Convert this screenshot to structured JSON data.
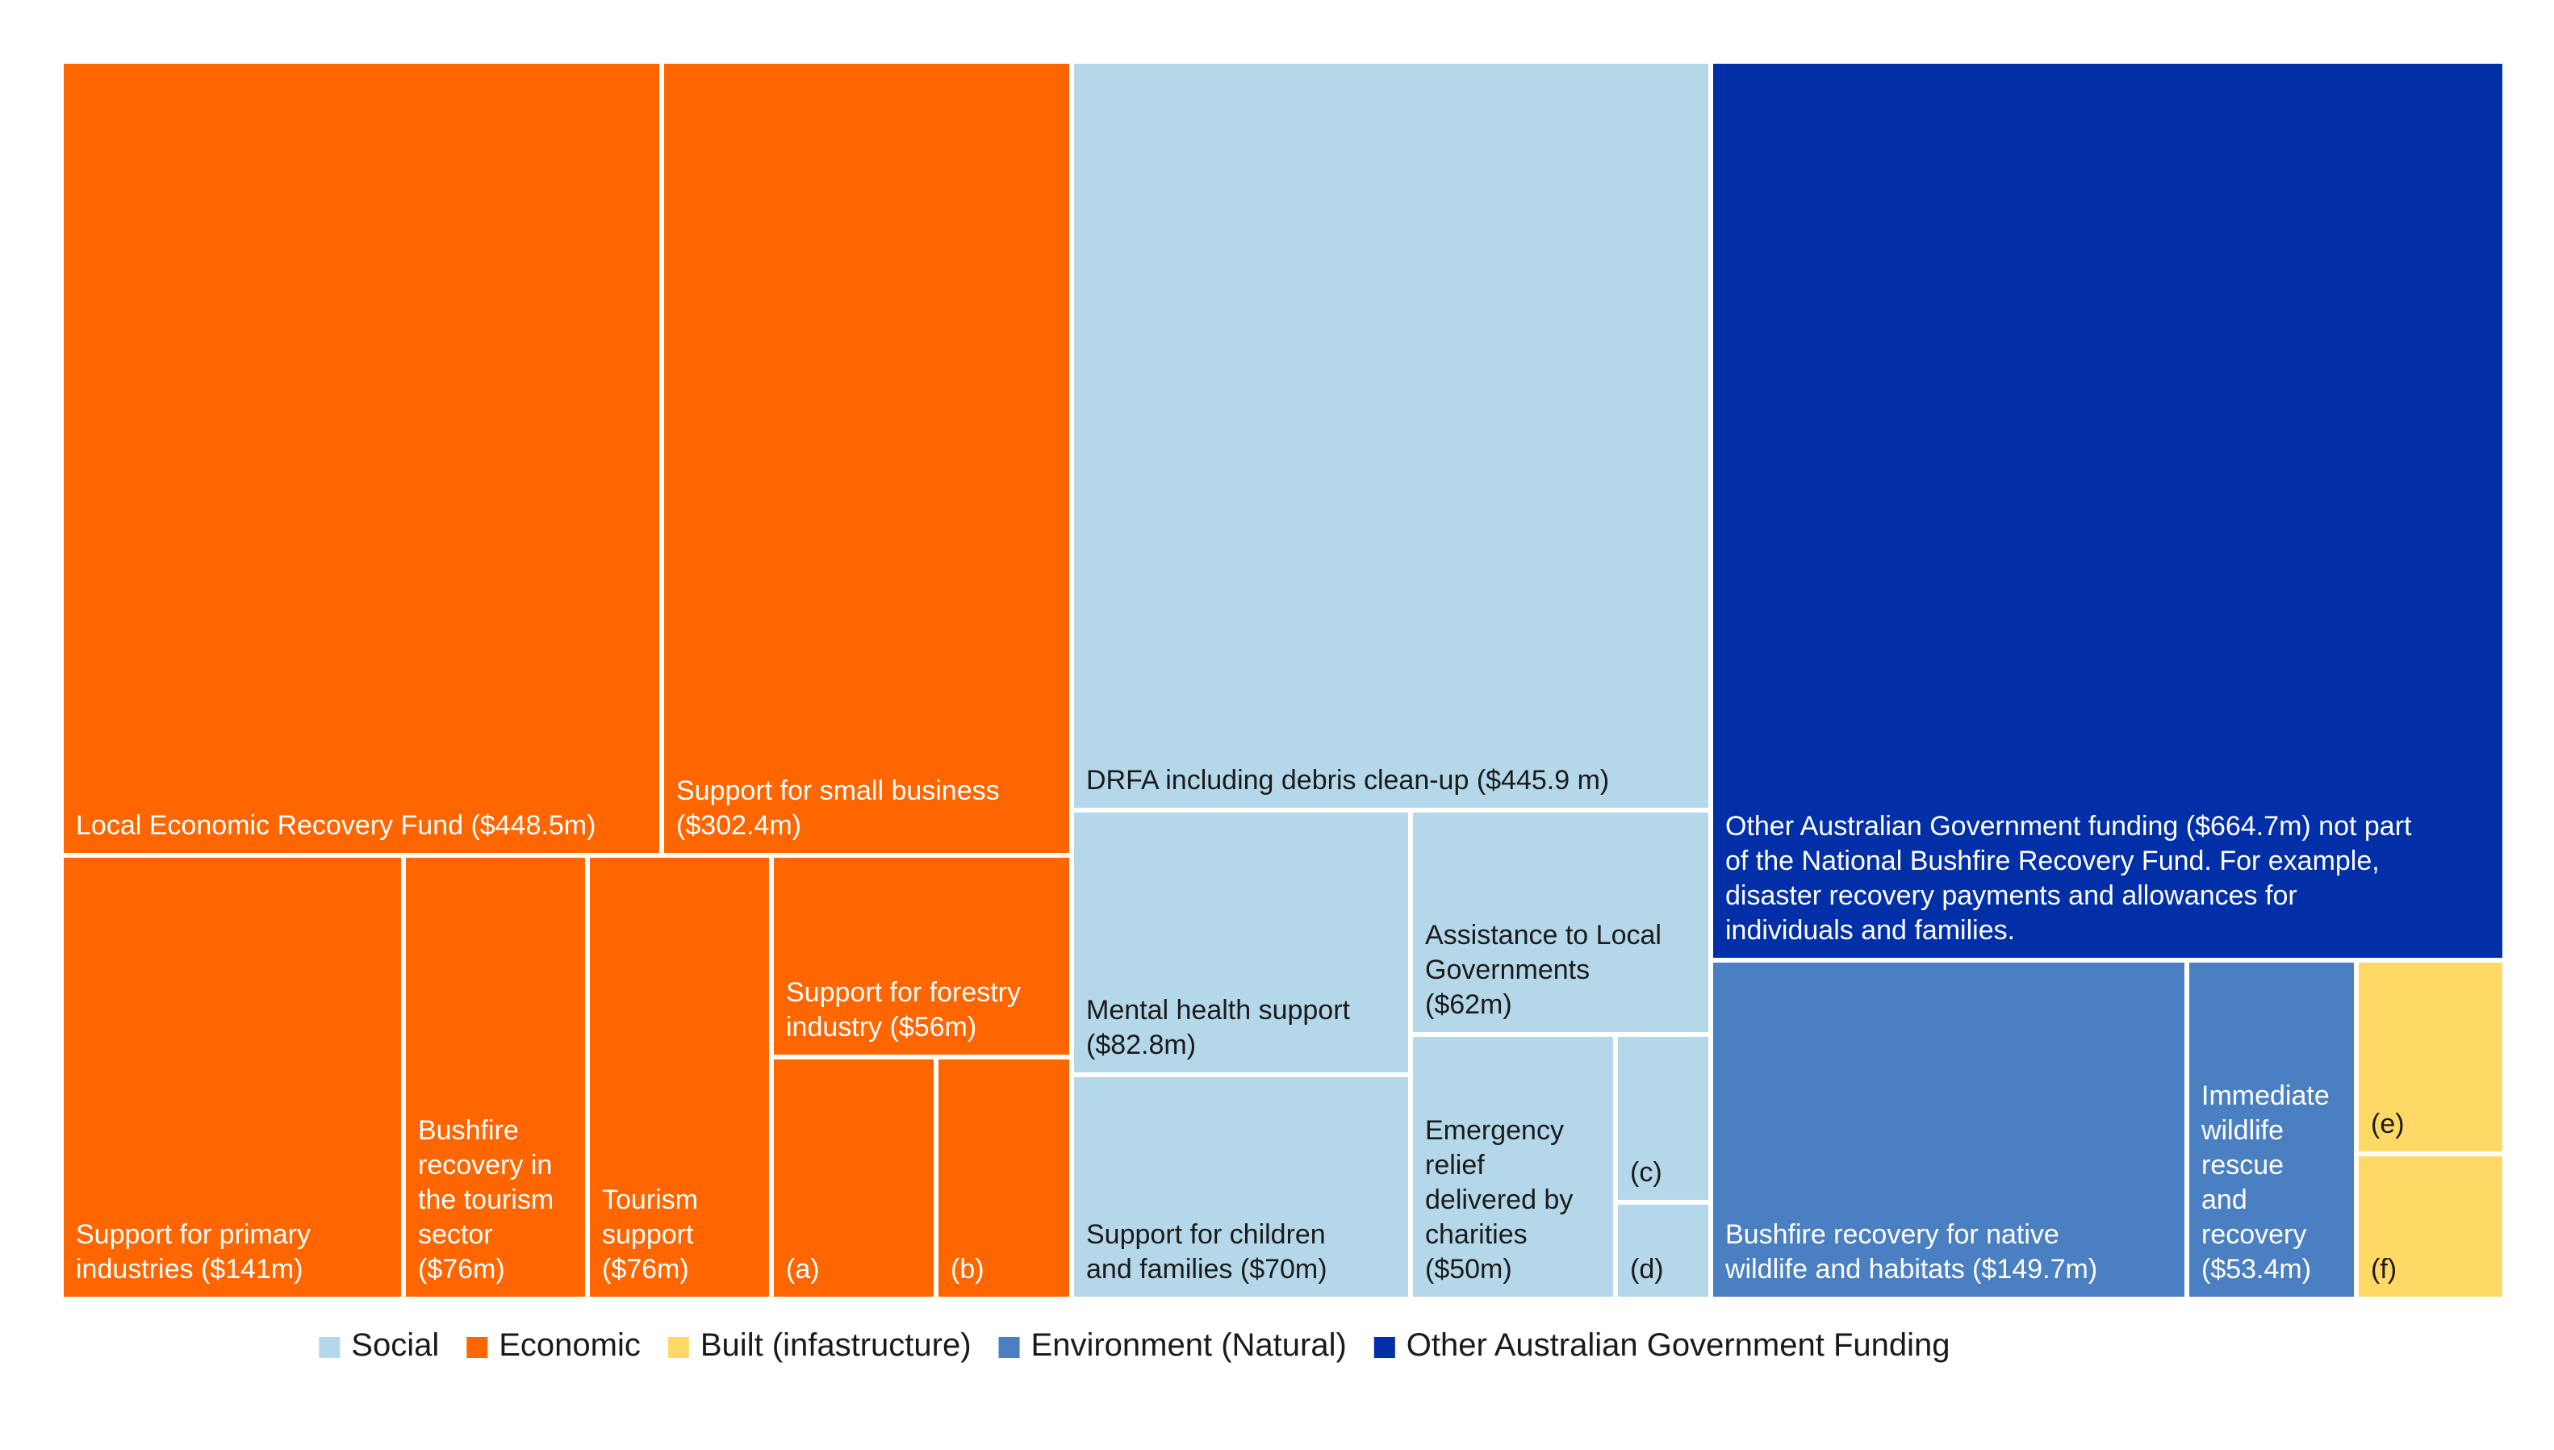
{
  "chart_data": {
    "type": "treemap",
    "title": "",
    "units": "$m",
    "categories": [
      {
        "key": "social",
        "name": "Social",
        "color": "#b4d8ea"
      },
      {
        "key": "economic",
        "name": "Economic",
        "color": "#ff6600"
      },
      {
        "key": "built",
        "name": "Built (infastructure)",
        "color": "#ffd966"
      },
      {
        "key": "environment",
        "name": "Environment (Natural)",
        "color": "#4a7fc1"
      },
      {
        "key": "other",
        "name": "Other Australian Government Funding",
        "color": "#002fa7"
      }
    ],
    "items": [
      {
        "id": "local-economic-recovery-fund",
        "category": "economic",
        "value": 448.5,
        "label": [
          "Local Economic Recovery Fund ($448.5m)"
        ]
      },
      {
        "id": "support-small-business",
        "category": "economic",
        "value": 302.4,
        "label": [
          "Support for small business",
          "($302.4m)"
        ]
      },
      {
        "id": "support-primary-industries",
        "category": "economic",
        "value": 141,
        "label": [
          "Support for primary",
          "industries ($141m)"
        ]
      },
      {
        "id": "bushfire-recovery-tourism",
        "category": "economic",
        "value": 76,
        "label": [
          "Bushfire",
          "recovery in",
          "the tourism",
          "sector",
          "($76m)"
        ]
      },
      {
        "id": "tourism-support",
        "category": "economic",
        "value": 76,
        "label": [
          "Tourism",
          "support",
          "($76m)"
        ]
      },
      {
        "id": "support-forestry",
        "category": "economic",
        "value": 56,
        "label": [
          "Support for forestry",
          "industry ($56m)"
        ]
      },
      {
        "id": "item-a",
        "category": "economic",
        "value": null,
        "label": [
          "(a)"
        ]
      },
      {
        "id": "item-b",
        "category": "economic",
        "value": null,
        "label": [
          "(b)"
        ]
      },
      {
        "id": "drfa-debris-cleanup",
        "category": "social",
        "value": 445.9,
        "label": [
          "DRFA including debris clean-up ($445.9 m)"
        ]
      },
      {
        "id": "mental-health-support",
        "category": "social",
        "value": 82.8,
        "label": [
          "Mental health support",
          "($82.8m)"
        ]
      },
      {
        "id": "assistance-local-governments",
        "category": "social",
        "value": 62,
        "label": [
          "Assistance to Local",
          "Governments",
          "($62m)"
        ]
      },
      {
        "id": "support-children-families",
        "category": "social",
        "value": 70,
        "label": [
          "Support for children",
          "and families ($70m)"
        ]
      },
      {
        "id": "emergency-relief-charities",
        "category": "social",
        "value": 50,
        "label": [
          "Emergency",
          "relief",
          "delivered by",
          "charities",
          "($50m)"
        ]
      },
      {
        "id": "item-c",
        "category": "social",
        "value": null,
        "label": [
          "(c)"
        ]
      },
      {
        "id": "item-d",
        "category": "social",
        "value": null,
        "label": [
          "(d)"
        ]
      },
      {
        "id": "other-aus-gov-funding",
        "category": "other",
        "value": 664.7,
        "label": [
          "Other Australian Government funding ($664.7m) not part",
          "of the National Bushfire Recovery Fund. For example,",
          "disaster recovery payments and allowances for",
          "individuals and families."
        ]
      },
      {
        "id": "bushfire-recovery-wildlife-habitats",
        "category": "environment",
        "value": 149.7,
        "label": [
          "Bushfire recovery for native",
          "wildlife and habitats ($149.7m)"
        ]
      },
      {
        "id": "immediate-wildlife-rescue",
        "category": "environment",
        "value": 53.4,
        "label": [
          "Immediate",
          "wildlife",
          "rescue",
          "and",
          "recovery",
          "($53.4m)"
        ]
      },
      {
        "id": "item-e",
        "category": "built",
        "value": null,
        "label": [
          "(e)"
        ]
      },
      {
        "id": "item-f",
        "category": "built",
        "value": null,
        "label": [
          "(f)"
        ]
      }
    ]
  }
}
